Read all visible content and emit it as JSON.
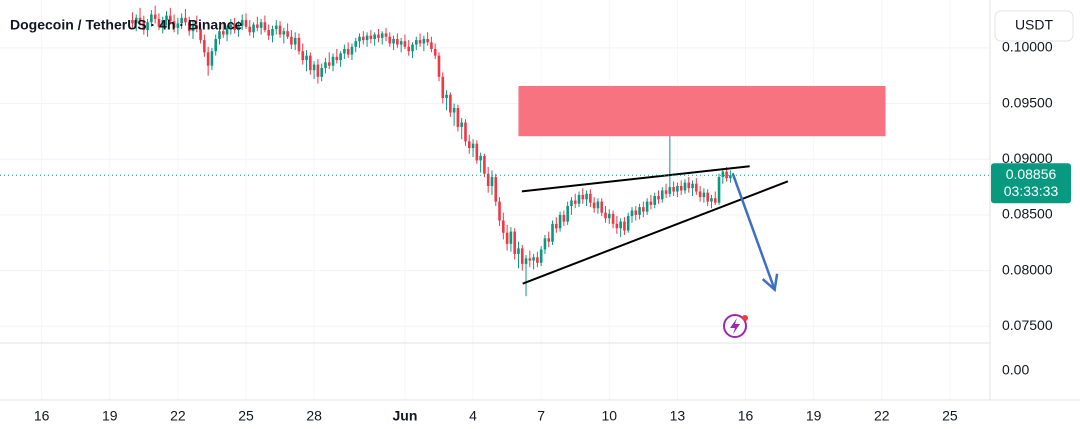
{
  "chart_data": {
    "type": "candlestick",
    "title": "Dogecoin / TetherUS · 4h · Binance",
    "currency_button": "USDT",
    "up_color": "#089981",
    "down_color": "#f23645",
    "xlim": [
      -35,
      226.6
    ],
    "xticks": [
      {
        "value": -24,
        "label": "16"
      },
      {
        "value": -6,
        "label": "19"
      },
      {
        "value": 12,
        "label": "22"
      },
      {
        "value": 30,
        "label": "25"
      },
      {
        "value": 48,
        "label": "28"
      },
      {
        "value": 72,
        "label": "Jun"
      },
      {
        "value": 90,
        "label": "4"
      },
      {
        "value": 108,
        "label": "7"
      },
      {
        "value": 126,
        "label": "10"
      },
      {
        "value": 144,
        "label": "13"
      },
      {
        "value": 162,
        "label": "16"
      },
      {
        "value": 180,
        "label": "19"
      },
      {
        "value": 198,
        "label": "22"
      },
      {
        "value": 216,
        "label": "25"
      }
    ],
    "ylim": [
      0.0735,
      0.1043
    ],
    "yticks": [
      {
        "value": 0.075,
        "label": "0.07500"
      },
      {
        "value": 0.08,
        "label": "0.08000"
      },
      {
        "value": 0.085,
        "label": "0.08500"
      },
      {
        "value": 0.09,
        "label": "0.09000"
      },
      {
        "value": 0.095,
        "label": "0.09500"
      },
      {
        "value": 0.1,
        "label": "0.10000"
      }
    ],
    "pane2_yticks": [
      {
        "value": 0,
        "label": "0.00"
      }
    ],
    "grid": true,
    "current_price": 0.08856,
    "countdown": "03:33:33",
    "ohlc": [
      [
        0.1025,
        0.1032,
        0.1018,
        0.1022
      ],
      [
        0.1022,
        0.103,
        0.1015,
        0.1027
      ],
      [
        0.1027,
        0.1036,
        0.102,
        0.1024
      ],
      [
        0.1024,
        0.1029,
        0.1012,
        0.1016
      ],
      [
        0.1016,
        0.1026,
        0.101,
        0.1023
      ],
      [
        0.1023,
        0.1034,
        0.1019,
        0.103
      ],
      [
        0.103,
        0.1038,
        0.1022,
        0.1026
      ],
      [
        0.1026,
        0.1031,
        0.1016,
        0.1019
      ],
      [
        0.1019,
        0.1028,
        0.1013,
        0.1025
      ],
      [
        0.1025,
        0.1033,
        0.102,
        0.1029
      ],
      [
        0.1029,
        0.1036,
        0.1021,
        0.1024
      ],
      [
        0.1024,
        0.103,
        0.1014,
        0.1018
      ],
      [
        0.1018,
        0.1027,
        0.1012,
        0.1022
      ],
      [
        0.1022,
        0.1031,
        0.1017,
        0.1027
      ],
      [
        0.1027,
        0.1035,
        0.102,
        0.1023
      ],
      [
        0.1023,
        0.1028,
        0.1011,
        0.1015
      ],
      [
        0.1015,
        0.1024,
        0.1008,
        0.102
      ],
      [
        0.102,
        0.1029,
        0.1014,
        0.1017
      ],
      [
        0.1017,
        0.1022,
        0.1004,
        0.1007
      ],
      [
        0.1007,
        0.1012,
        0.0992,
        0.0996
      ],
      [
        0.0996,
        0.1001,
        0.0975,
        0.0984
      ],
      [
        0.0984,
        0.1,
        0.098,
        0.0997
      ],
      [
        0.0997,
        0.1012,
        0.0993,
        0.1008
      ],
      [
        0.1008,
        0.1019,
        0.1003,
        0.1015
      ],
      [
        0.1015,
        0.1023,
        0.1009,
        0.1012
      ],
      [
        0.1012,
        0.102,
        0.1006,
        0.1018
      ],
      [
        0.1018,
        0.1026,
        0.1012,
        0.1021
      ],
      [
        0.1021,
        0.1027,
        0.1013,
        0.1016
      ],
      [
        0.1016,
        0.1024,
        0.101,
        0.102
      ],
      [
        0.102,
        0.103,
        0.1016,
        0.1025
      ],
      [
        0.1025,
        0.1031,
        0.1017,
        0.1019
      ],
      [
        0.1019,
        0.1025,
        0.1011,
        0.1014
      ],
      [
        0.1014,
        0.1023,
        0.1009,
        0.1021
      ],
      [
        0.1021,
        0.1028,
        0.1015,
        0.1018
      ],
      [
        0.1018,
        0.1026,
        0.1012,
        0.1023
      ],
      [
        0.1023,
        0.1029,
        0.1014,
        0.1016
      ],
      [
        0.1016,
        0.1021,
        0.1007,
        0.1011
      ],
      [
        0.1011,
        0.102,
        0.1005,
        0.1017
      ],
      [
        0.1017,
        0.1025,
        0.1012,
        0.102
      ],
      [
        0.102,
        0.1024,
        0.1009,
        0.1012
      ],
      [
        0.1012,
        0.1018,
        0.1004,
        0.1015
      ],
      [
        0.1015,
        0.1022,
        0.1008,
        0.101
      ],
      [
        0.101,
        0.1016,
        0.0999,
        0.1003
      ],
      [
        0.1003,
        0.1014,
        0.0998,
        0.1009
      ],
      [
        0.1009,
        0.1013,
        0.0994,
        0.0997
      ],
      [
        0.0997,
        0.1004,
        0.0985,
        0.0989
      ],
      [
        0.0989,
        0.0998,
        0.0979,
        0.0993
      ],
      [
        0.0993,
        0.0996,
        0.0976,
        0.098
      ],
      [
        0.098,
        0.0988,
        0.0972,
        0.0985
      ],
      [
        0.0985,
        0.099,
        0.0968,
        0.0974
      ],
      [
        0.0974,
        0.0986,
        0.097,
        0.0982
      ],
      [
        0.0982,
        0.0991,
        0.0977,
        0.0987
      ],
      [
        0.0987,
        0.0996,
        0.0981,
        0.0984
      ],
      [
        0.0984,
        0.0995,
        0.0979,
        0.0992
      ],
      [
        0.0992,
        0.0999,
        0.0986,
        0.0989
      ],
      [
        0.0989,
        0.0997,
        0.0983,
        0.0995
      ],
      [
        0.0995,
        0.1003,
        0.099,
        0.0999
      ],
      [
        0.0999,
        0.1005,
        0.0991,
        0.0994
      ],
      [
        0.0994,
        0.1004,
        0.0989,
        0.1001
      ],
      [
        0.1001,
        0.1009,
        0.0996,
        0.1006
      ],
      [
        0.1006,
        0.1013,
        0.1,
        0.101
      ],
      [
        0.101,
        0.1015,
        0.1003,
        0.1007
      ],
      [
        0.1007,
        0.1014,
        0.1001,
        0.1011
      ],
      [
        0.1011,
        0.1016,
        0.1004,
        0.1008
      ],
      [
        0.1008,
        0.1014,
        0.1002,
        0.1012
      ],
      [
        0.1012,
        0.1017,
        0.1005,
        0.1009
      ],
      [
        0.1009,
        0.1015,
        0.1003,
        0.1013
      ],
      [
        0.1013,
        0.1018,
        0.1006,
        0.101
      ],
      [
        0.101,
        0.1014,
        0.1001,
        0.1004
      ],
      [
        0.1004,
        0.1011,
        0.0998,
        0.1008
      ],
      [
        0.1008,
        0.1013,
        0.1,
        0.1003
      ],
      [
        0.1003,
        0.1009,
        0.0996,
        0.1006
      ],
      [
        0.1006,
        0.1012,
        0.0999,
        0.1001
      ],
      [
        0.1001,
        0.1007,
        0.0993,
        0.0997
      ],
      [
        0.0997,
        0.1005,
        0.0991,
        0.1003
      ],
      [
        0.1003,
        0.101,
        0.0998,
        0.1007
      ],
      [
        0.1007,
        0.1013,
        0.1001,
        0.1004
      ],
      [
        0.1004,
        0.1011,
        0.0997,
        0.1008
      ],
      [
        0.1008,
        0.1014,
        0.1002,
        0.1005
      ],
      [
        0.1005,
        0.101,
        0.0996,
        0.0999
      ],
      [
        0.0999,
        0.1004,
        0.099,
        0.0993
      ],
      [
        0.0993,
        0.0996,
        0.097,
        0.0974
      ],
      [
        0.0974,
        0.0978,
        0.095,
        0.0955
      ],
      [
        0.0955,
        0.0962,
        0.0944,
        0.0958
      ],
      [
        0.0958,
        0.096,
        0.0938,
        0.0942
      ],
      [
        0.0942,
        0.095,
        0.093,
        0.0946
      ],
      [
        0.0946,
        0.0949,
        0.0925,
        0.0929
      ],
      [
        0.0929,
        0.0937,
        0.0918,
        0.0933
      ],
      [
        0.0933,
        0.0936,
        0.0912,
        0.0916
      ],
      [
        0.0916,
        0.0922,
        0.0905,
        0.091
      ],
      [
        0.091,
        0.0918,
        0.0902,
        0.0914
      ],
      [
        0.0914,
        0.0917,
        0.0896,
        0.0899
      ],
      [
        0.0899,
        0.0906,
        0.0888,
        0.0903
      ],
      [
        0.0903,
        0.0905,
        0.0884,
        0.0887
      ],
      [
        0.0887,
        0.0893,
        0.087,
        0.0876
      ],
      [
        0.0876,
        0.089,
        0.0868,
        0.0884
      ],
      [
        0.0884,
        0.0887,
        0.0858,
        0.0862
      ],
      [
        0.0862,
        0.0866,
        0.084,
        0.0845
      ],
      [
        0.0845,
        0.0852,
        0.0828,
        0.0834
      ],
      [
        0.0834,
        0.0841,
        0.0818,
        0.0824
      ],
      [
        0.0824,
        0.0839,
        0.0817,
        0.0835
      ],
      [
        0.0835,
        0.0838,
        0.081,
        0.0815
      ],
      [
        0.0815,
        0.0826,
        0.0802,
        0.082
      ],
      [
        0.082,
        0.0823,
        0.08,
        0.0806
      ],
      [
        0.0806,
        0.0814,
        0.0777,
        0.0811
      ],
      [
        0.0811,
        0.0818,
        0.0803,
        0.0809
      ],
      [
        0.0809,
        0.0815,
        0.0801,
        0.0812
      ],
      [
        0.0812,
        0.0817,
        0.0803,
        0.0807
      ],
      [
        0.0807,
        0.0822,
        0.0804,
        0.0819
      ],
      [
        0.0819,
        0.0832,
        0.0815,
        0.0829
      ],
      [
        0.0829,
        0.0835,
        0.0821,
        0.0826
      ],
      [
        0.0826,
        0.0845,
        0.0823,
        0.0842
      ],
      [
        0.0842,
        0.0848,
        0.0834,
        0.0838
      ],
      [
        0.0838,
        0.0853,
        0.0835,
        0.085
      ],
      [
        0.085,
        0.0854,
        0.084,
        0.0844
      ],
      [
        0.0844,
        0.0862,
        0.0841,
        0.0858
      ],
      [
        0.0858,
        0.0866,
        0.085,
        0.0863
      ],
      [
        0.0863,
        0.0869,
        0.0856,
        0.086
      ],
      [
        0.086,
        0.0871,
        0.0857,
        0.0868
      ],
      [
        0.0868,
        0.0874,
        0.086,
        0.0864
      ],
      [
        0.0864,
        0.0872,
        0.0858,
        0.0869
      ],
      [
        0.0869,
        0.0873,
        0.0857,
        0.0861
      ],
      [
        0.0861,
        0.0866,
        0.0852,
        0.0856
      ],
      [
        0.0856,
        0.0865,
        0.0851,
        0.0862
      ],
      [
        0.0862,
        0.0865,
        0.0849,
        0.0852
      ],
      [
        0.0852,
        0.0858,
        0.0843,
        0.0847
      ],
      [
        0.0847,
        0.0855,
        0.0842,
        0.0851
      ],
      [
        0.0851,
        0.0854,
        0.0838,
        0.0842
      ],
      [
        0.0842,
        0.0849,
        0.0833,
        0.0838
      ],
      [
        0.0838,
        0.0847,
        0.083,
        0.0844
      ],
      [
        0.0844,
        0.0848,
        0.0832,
        0.0836
      ],
      [
        0.0836,
        0.0852,
        0.0834,
        0.0849
      ],
      [
        0.0849,
        0.0857,
        0.0843,
        0.0854
      ],
      [
        0.0854,
        0.0858,
        0.0845,
        0.085
      ],
      [
        0.085,
        0.086,
        0.0846,
        0.0857
      ],
      [
        0.0857,
        0.0862,
        0.0848,
        0.0853
      ],
      [
        0.0853,
        0.0865,
        0.085,
        0.0862
      ],
      [
        0.0862,
        0.0868,
        0.0855,
        0.0859
      ],
      [
        0.0859,
        0.087,
        0.0856,
        0.0867
      ],
      [
        0.0867,
        0.0872,
        0.086,
        0.0864
      ],
      [
        0.0864,
        0.0875,
        0.0861,
        0.0872
      ],
      [
        0.0872,
        0.0878,
        0.0865,
        0.0869
      ],
      [
        0.0869,
        0.0922,
        0.0866,
        0.0875
      ],
      [
        0.0875,
        0.088,
        0.0867,
        0.0871
      ],
      [
        0.0871,
        0.0879,
        0.0866,
        0.0876
      ],
      [
        0.0876,
        0.0881,
        0.0868,
        0.0872
      ],
      [
        0.0872,
        0.0882,
        0.0869,
        0.0879
      ],
      [
        0.0879,
        0.0884,
        0.087,
        0.0874
      ],
      [
        0.0874,
        0.0881,
        0.0867,
        0.0878
      ],
      [
        0.0878,
        0.0883,
        0.0868,
        0.0871
      ],
      [
        0.0871,
        0.0876,
        0.0862,
        0.0866
      ],
      [
        0.0866,
        0.0874,
        0.0861,
        0.087
      ],
      [
        0.087,
        0.0873,
        0.0858,
        0.0862
      ],
      [
        0.0862,
        0.0868,
        0.0856,
        0.0865
      ],
      [
        0.0865,
        0.0871,
        0.0859,
        0.0861
      ],
      [
        0.0861,
        0.0887,
        0.0859,
        0.0884
      ],
      [
        0.0884,
        0.0892,
        0.0878,
        0.0889
      ],
      [
        0.0889,
        0.0893,
        0.088,
        0.0883
      ],
      [
        0.0883,
        0.089,
        0.0879,
        0.08856
      ]
    ],
    "drawings": {
      "zone": {
        "x": [
          102,
          199
        ],
        "y": [
          0.09207,
          0.09658
        ],
        "color": "#f7737f"
      },
      "upper_line": {
        "x": [
          102.9,
          163.1
        ],
        "y": [
          0.08712,
          0.08937
        ],
        "color": "#000000"
      },
      "lower_line": {
        "x": [
          103.1,
          173.2
        ],
        "y": [
          0.07883,
          0.08802
        ],
        "color": "#000000"
      },
      "arrow": {
        "x": [
          158.6,
          169.7
        ],
        "y": [
          0.08874,
          0.07829
        ],
        "color": "#3d6fc4"
      }
    }
  }
}
